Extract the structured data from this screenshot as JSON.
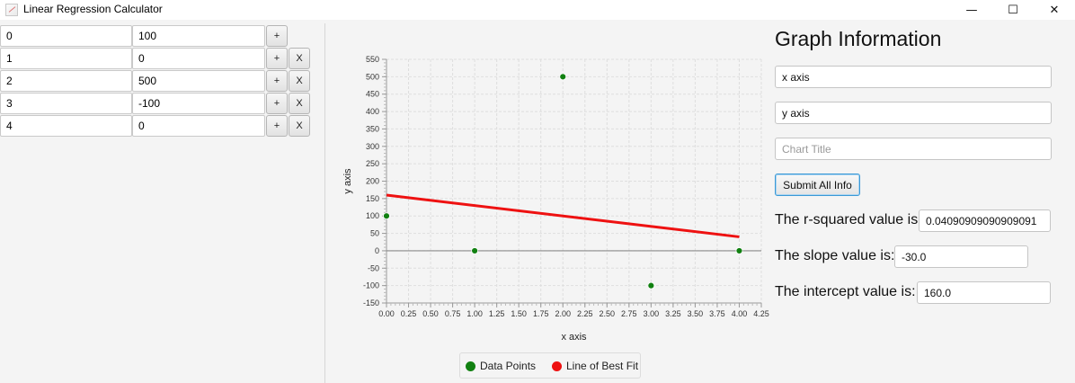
{
  "window": {
    "title": "Linear Regression Calculator",
    "controls": {
      "minimize": "—",
      "maximize": "☐",
      "close": "✕"
    }
  },
  "table": {
    "rows": [
      {
        "x": "0",
        "y": "100",
        "has_remove": false
      },
      {
        "x": "1",
        "y": "0",
        "has_remove": true
      },
      {
        "x": "2",
        "y": "500",
        "has_remove": true
      },
      {
        "x": "3",
        "y": "-100",
        "has_remove": true
      },
      {
        "x": "4",
        "y": "0",
        "has_remove": true
      }
    ],
    "add_label": "+",
    "remove_label": "X"
  },
  "chart_data": {
    "type": "scatter",
    "xlabel": "x axis",
    "ylabel": "y axis",
    "xlim": [
      0,
      4.25
    ],
    "ylim": [
      -150,
      550
    ],
    "x_ticks": [
      "0.00",
      "0.25",
      "0.50",
      "0.75",
      "1.00",
      "1.25",
      "1.50",
      "1.75",
      "2.00",
      "2.25",
      "2.50",
      "2.75",
      "3.00",
      "3.25",
      "3.50",
      "3.75",
      "4.00",
      "4.25"
    ],
    "y_ticks": [
      "-150",
      "-100",
      "-50",
      "0",
      "50",
      "100",
      "150",
      "200",
      "250",
      "300",
      "350",
      "400",
      "450",
      "500",
      "550"
    ],
    "grid": true,
    "legend_position": "bottom",
    "series": [
      {
        "name": "Data Points",
        "kind": "points",
        "color": "#118011",
        "points": [
          [
            0,
            100
          ],
          [
            1,
            0
          ],
          [
            2,
            500
          ],
          [
            3,
            -100
          ],
          [
            4,
            0
          ]
        ]
      },
      {
        "name": "Line of Best Fit",
        "kind": "line",
        "color": "#ee1111",
        "points": [
          [
            0,
            160
          ],
          [
            4,
            40
          ]
        ]
      }
    ]
  },
  "info_panel": {
    "heading": "Graph Information",
    "x_axis_value": "x axis",
    "y_axis_value": "y axis",
    "chart_title_placeholder": "Chart Title",
    "submit_label": "Submit All Info",
    "r2_label": "The r-squared value is:",
    "r2_value": "0.04090909090909091",
    "slope_label": "The slope value is:",
    "slope_value": "-30.0",
    "intercept_label": "The intercept value is:",
    "intercept_value": "160.0"
  }
}
